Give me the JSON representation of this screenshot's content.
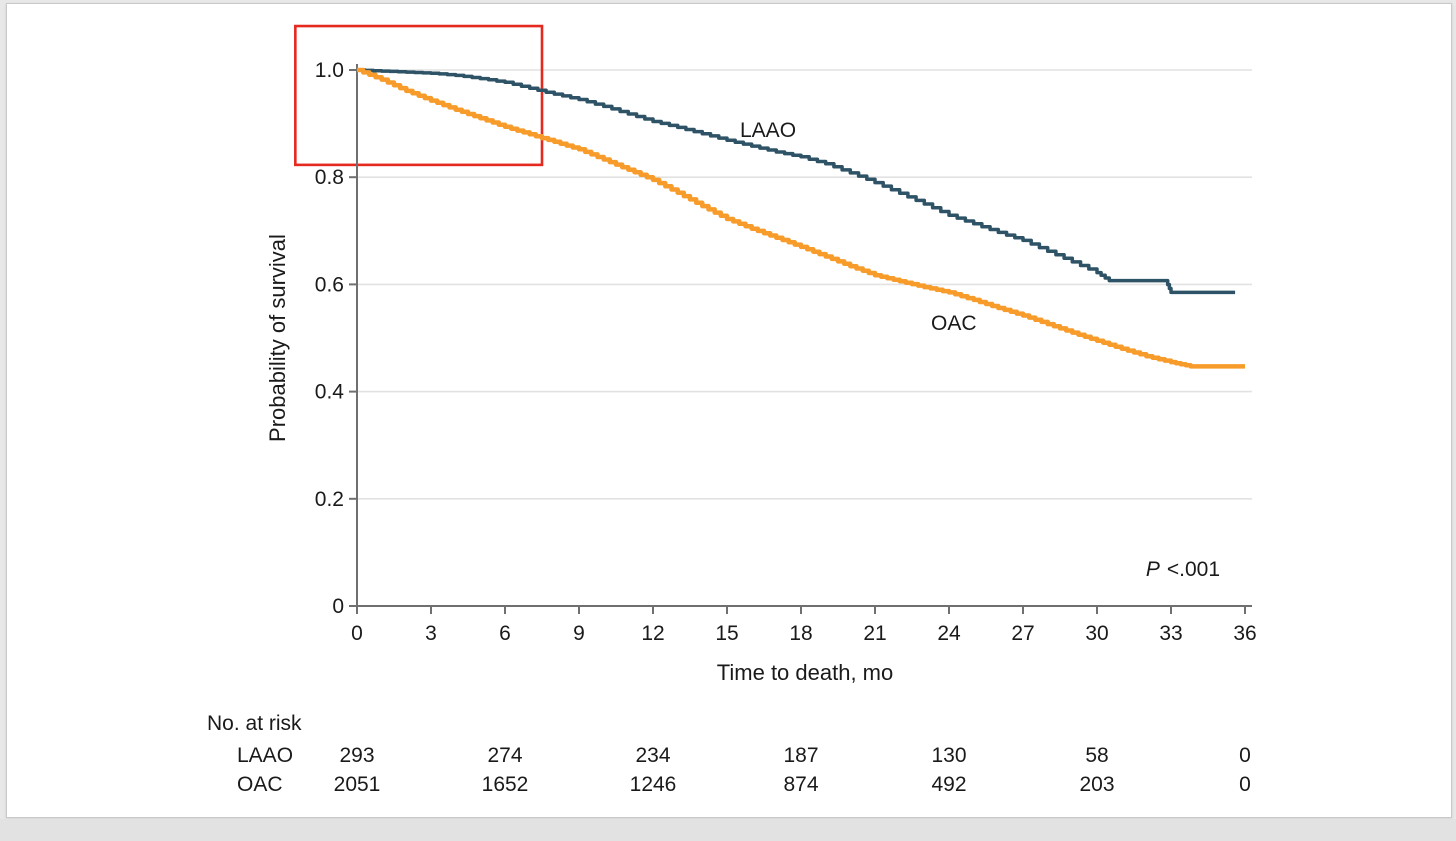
{
  "chart_data": {
    "type": "line",
    "subtype": "kaplan-meier-step",
    "title": "",
    "xlabel": "Time to death, mo",
    "ylabel": "Probability of survival",
    "xlim": [
      0,
      36
    ],
    "ylim": [
      0,
      1.0
    ],
    "x_ticks": [
      0,
      3,
      6,
      9,
      12,
      15,
      18,
      21,
      24,
      27,
      30,
      33,
      36
    ],
    "y_ticks": [
      0,
      0.2,
      0.4,
      0.6,
      0.8,
      1.0
    ],
    "y_tick_labels": [
      "0",
      "0.2",
      "0.4",
      "0.6",
      "0.8",
      "1.0"
    ],
    "grid": "horizontal-only",
    "legend_position": "inline-curve-labels",
    "annotations": {
      "p_value_full": "P <.001",
      "p_value_italic": "P",
      "p_value_rest": "<.001",
      "red_highlight_box": {
        "t_range": [
          -2.5,
          7.5
        ],
        "p_range": [
          0.823,
          1.082
        ]
      }
    },
    "series": [
      {
        "name": "LAAO",
        "color": "#2E5366",
        "line_style": "step",
        "points": [
          [
            0,
            1.0
          ],
          [
            1,
            0.998
          ],
          [
            2,
            0.996
          ],
          [
            3,
            0.994
          ],
          [
            4,
            0.99
          ],
          [
            5,
            0.984
          ],
          [
            6,
            0.977
          ],
          [
            7,
            0.966
          ],
          [
            8,
            0.955
          ],
          [
            9,
            0.945
          ],
          [
            10,
            0.932
          ],
          [
            11,
            0.918
          ],
          [
            12,
            0.904
          ],
          [
            13,
            0.893
          ],
          [
            14,
            0.881
          ],
          [
            15,
            0.869
          ],
          [
            16,
            0.858
          ],
          [
            17,
            0.847
          ],
          [
            18,
            0.838
          ],
          [
            19,
            0.825
          ],
          [
            20,
            0.808
          ],
          [
            21,
            0.79
          ],
          [
            22,
            0.77
          ],
          [
            23,
            0.75
          ],
          [
            24,
            0.729
          ],
          [
            25,
            0.713
          ],
          [
            26,
            0.697
          ],
          [
            27,
            0.682
          ],
          [
            28,
            0.662
          ],
          [
            29,
            0.642
          ],
          [
            30,
            0.622
          ],
          [
            30.5,
            0.607
          ],
          [
            32.8,
            0.607
          ],
          [
            33,
            0.585
          ],
          [
            35.6,
            0.585
          ]
        ]
      },
      {
        "name": "OAC",
        "color": "#F79C2B",
        "line_style": "step-fine",
        "points": [
          [
            0,
            1.0
          ],
          [
            1,
            0.982
          ],
          [
            2,
            0.961
          ],
          [
            3,
            0.943
          ],
          [
            4,
            0.926
          ],
          [
            5,
            0.91
          ],
          [
            6,
            0.894
          ],
          [
            7,
            0.88
          ],
          [
            8,
            0.866
          ],
          [
            9,
            0.852
          ],
          [
            10,
            0.833
          ],
          [
            11,
            0.814
          ],
          [
            12,
            0.795
          ],
          [
            13,
            0.771
          ],
          [
            14,
            0.746
          ],
          [
            15,
            0.722
          ],
          [
            16,
            0.704
          ],
          [
            17,
            0.687
          ],
          [
            18,
            0.67
          ],
          [
            19,
            0.652
          ],
          [
            20,
            0.634
          ],
          [
            21,
            0.617
          ],
          [
            22,
            0.606
          ],
          [
            23,
            0.595
          ],
          [
            24,
            0.585
          ],
          [
            25,
            0.571
          ],
          [
            26,
            0.556
          ],
          [
            27,
            0.542
          ],
          [
            28,
            0.526
          ],
          [
            29,
            0.51
          ],
          [
            30,
            0.495
          ],
          [
            31,
            0.48
          ],
          [
            32,
            0.466
          ],
          [
            33,
            0.455
          ],
          [
            33.8,
            0.447
          ],
          [
            36,
            0.447
          ]
        ]
      }
    ]
  },
  "risk_table": {
    "title": "No. at risk",
    "time_points": [
      0,
      6,
      12,
      18,
      24,
      30,
      36
    ],
    "rows": [
      {
        "label": "LAAO",
        "values": [
          "293",
          "274",
          "234",
          "187",
          "130",
          "58",
          "0"
        ]
      },
      {
        "label": "OAC",
        "values": [
          "2051",
          "1652",
          "1246",
          "874",
          "492",
          "203",
          "0"
        ]
      }
    ]
  },
  "style_colors": {
    "laao_line": "#2E5366",
    "oac_line": "#F79C2B",
    "highlight_box": "#E5291F",
    "gridline": "#e2e2e2",
    "axis": "#6f6f6f",
    "text": "#1a1a1a"
  }
}
